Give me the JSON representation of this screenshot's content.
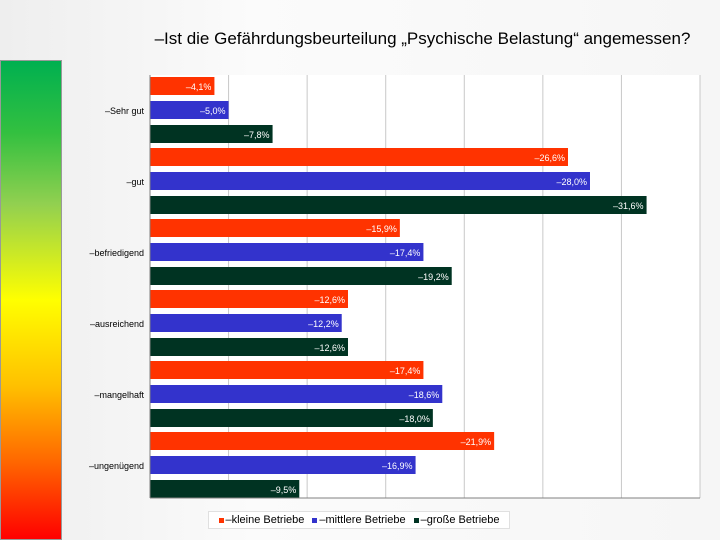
{
  "chart_data": {
    "type": "bar",
    "orientation": "horizontal",
    "title": "–Ist die Gefährdungsbeurteilung „Psychische Belastung“ angemessen?",
    "categories": [
      "–Sehr gut",
      "–gut",
      "–befriedigend",
      "–ausreichend",
      "–mangelhaft",
      "–ungenügend"
    ],
    "series": [
      {
        "name": "–kleine Betriebe",
        "color": "#ff3300",
        "values": [
          4.1,
          26.6,
          15.9,
          12.6,
          17.4,
          21.9
        ]
      },
      {
        "name": "–mittlere Betriebe",
        "color": "#3333cc",
        "values": [
          5.0,
          28.0,
          17.4,
          12.2,
          18.6,
          16.9
        ]
      },
      {
        "name": "–große Betriebe",
        "color": "#003322",
        "values": [
          7.8,
          31.6,
          19.2,
          12.6,
          18.0,
          9.5
        ]
      }
    ],
    "data_labels": [
      [
        "–4,1%",
        "–5,0%",
        "–7,8%"
      ],
      [
        "–26,6%",
        "–28,0%",
        "–31,6%"
      ],
      [
        "–15,9%",
        "–17,4%",
        "–19,2%"
      ],
      [
        "–12,6%",
        "–12,2%",
        "–12,6%"
      ],
      [
        "–17,4%",
        "–18,6%",
        "–18,0%"
      ],
      [
        "–21,9%",
        "–16,9%",
        "–9,5%"
      ]
    ],
    "xlim": [
      0,
      35
    ],
    "grid": true,
    "legend_position": "bottom"
  }
}
